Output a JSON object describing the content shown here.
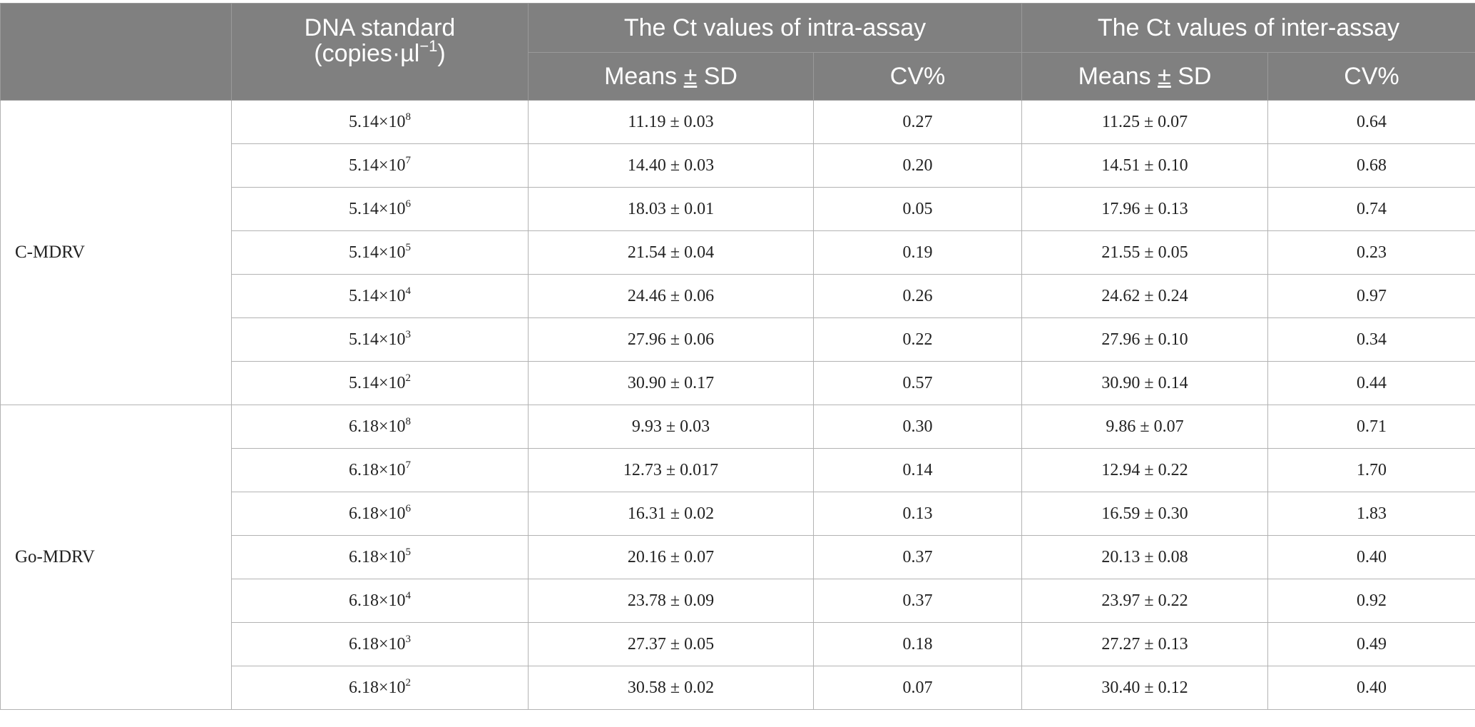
{
  "header": {
    "dna_standard_line1": "DNA standard",
    "dna_standard_line2_prefix": "(copies·µl",
    "dna_standard_line2_exp": "−1",
    "dna_standard_line2_suffix": ")",
    "intra_assay": "The Ct values of intra-assay",
    "inter_assay": "The Ct values of inter-assay",
    "means_word": "Means",
    "pm": "±",
    "sd_word": "SD",
    "cv": "CV%"
  },
  "groups": [
    {
      "name": "C-MDRV",
      "rows": [
        {
          "mantissa": "5.14",
          "times": "×",
          "base": "10",
          "exp": "8",
          "intra_mean": "11.19 ± 0.03",
          "intra_cv": "0.27",
          "inter_mean": "11.25 ± 0.07",
          "inter_cv": "0.64"
        },
        {
          "mantissa": "5.14",
          "times": "×",
          "base": "10",
          "exp": "7",
          "intra_mean": "14.40 ± 0.03",
          "intra_cv": "0.20",
          "inter_mean": "14.51 ± 0.10",
          "inter_cv": "0.68"
        },
        {
          "mantissa": "5.14",
          "times": "×",
          "base": "10",
          "exp": "6",
          "intra_mean": "18.03 ± 0.01",
          "intra_cv": "0.05",
          "inter_mean": "17.96 ± 0.13",
          "inter_cv": "0.74"
        },
        {
          "mantissa": "5.14",
          "times": "×",
          "base": "10",
          "exp": "5",
          "intra_mean": "21.54 ± 0.04",
          "intra_cv": "0.19",
          "inter_mean": "21.55 ± 0.05",
          "inter_cv": "0.23"
        },
        {
          "mantissa": "5.14",
          "times": "×",
          "base": "10",
          "exp": "4",
          "intra_mean": "24.46 ± 0.06",
          "intra_cv": "0.26",
          "inter_mean": "24.62 ± 0.24",
          "inter_cv": "0.97"
        },
        {
          "mantissa": "5.14",
          "times": "×",
          "base": "10",
          "exp": "3",
          "intra_mean": "27.96 ± 0.06",
          "intra_cv": "0.22",
          "inter_mean": "27.96 ± 0.10",
          "inter_cv": "0.34"
        },
        {
          "mantissa": "5.14",
          "times": "×",
          "base": "10",
          "exp": "2",
          "intra_mean": "30.90 ± 0.17",
          "intra_cv": "0.57",
          "inter_mean": "30.90 ± 0.14",
          "inter_cv": "0.44"
        }
      ]
    },
    {
      "name": "Go-MDRV",
      "rows": [
        {
          "mantissa": "6.18",
          "times": "×",
          "base": "10",
          "exp": "8",
          "intra_mean": "9.93 ± 0.03",
          "intra_cv": "0.30",
          "inter_mean": "9.86 ± 0.07",
          "inter_cv": "0.71"
        },
        {
          "mantissa": "6.18",
          "times": "×",
          "base": "10",
          "exp": "7",
          "intra_mean": "12.73 ± 0.017",
          "intra_cv": "0.14",
          "inter_mean": "12.94 ± 0.22",
          "inter_cv": "1.70"
        },
        {
          "mantissa": "6.18",
          "times": "×",
          "base": "10",
          "exp": "6",
          "intra_mean": "16.31 ± 0.02",
          "intra_cv": "0.13",
          "inter_mean": "16.59 ± 0.30",
          "inter_cv": "1.83"
        },
        {
          "mantissa": "6.18",
          "times": "×",
          "base": "10",
          "exp": "5",
          "intra_mean": "20.16 ± 0.07",
          "intra_cv": "0.37",
          "inter_mean": "20.13 ± 0.08",
          "inter_cv": "0.40"
        },
        {
          "mantissa": "6.18",
          "times": "×",
          "base": "10",
          "exp": "4",
          "intra_mean": "23.78 ± 0.09",
          "intra_cv": "0.37",
          "inter_mean": "23.97 ± 0.22",
          "inter_cv": "0.92"
        },
        {
          "mantissa": "6.18",
          "times": "×",
          "base": "10",
          "exp": "3",
          "intra_mean": "27.37 ± 0.05",
          "intra_cv": "0.18",
          "inter_mean": "27.27 ± 0.13",
          "inter_cv": "0.49"
        },
        {
          "mantissa": "6.18",
          "times": "×",
          "base": "10",
          "exp": "2",
          "intra_mean": "30.58 ± 0.02",
          "intra_cv": "0.07",
          "inter_mean": "30.40 ± 0.12",
          "inter_cv": "0.40"
        }
      ]
    }
  ]
}
